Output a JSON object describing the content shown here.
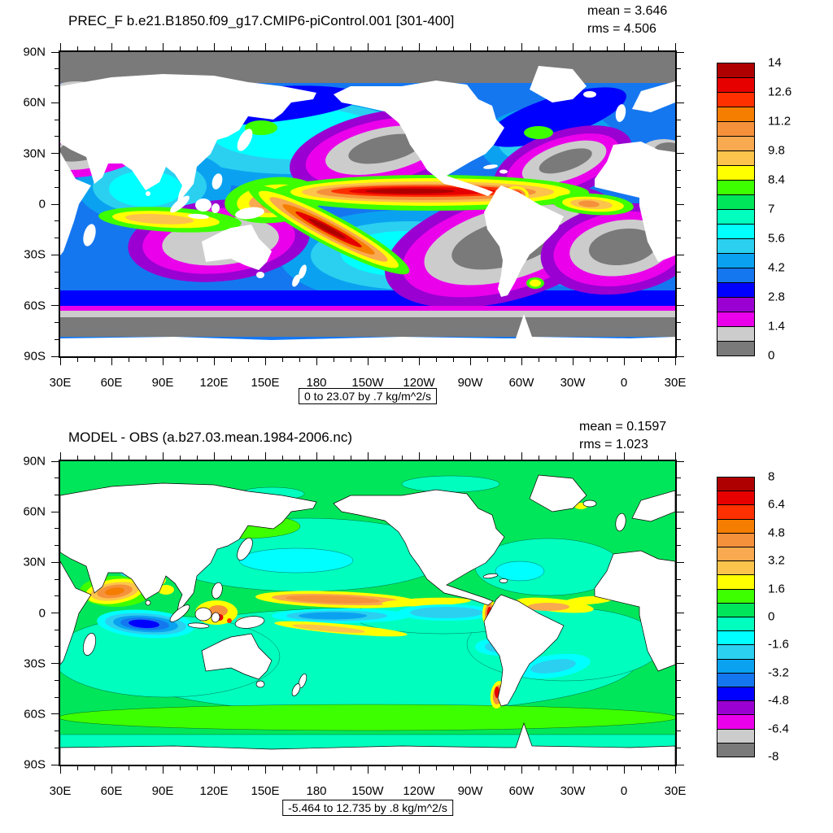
{
  "figure": {
    "background": "#FFFFFF",
    "kind": "AMWG climate diagnostic precipitation plot set"
  },
  "chart_data": [
    {
      "type": "filled-contour-map",
      "panel": "top",
      "title": "PREC_F b.e21.B1850.f09_g17.CMIP6-piControl.001 [301-400]",
      "stats": {
        "mean": 3.646,
        "rms": 4.506
      },
      "stats_lines": [
        "mean = 3.646",
        "rms = 4.506"
      ],
      "caption": "0 to 23.07 by .7 kg/m^2/s",
      "field_min": 0,
      "field_max": 23.07,
      "contour_interval": 0.7,
      "units": "kg/m^2/s",
      "projection": "global cylindrical equidistant, 30E to 30E, centered on 180",
      "x_tick_labels": [
        "30E",
        "60E",
        "90E",
        "120E",
        "150E",
        "180",
        "150W",
        "120W",
        "90W",
        "60W",
        "30W",
        "0",
        "30E"
      ],
      "y_tick_labels": [
        "90N",
        "60N",
        "30N",
        "0",
        "30S",
        "60S",
        "90S"
      ],
      "colorbar": {
        "tick_labels": [
          "14",
          "12.6",
          "11.2",
          "9.8",
          "8.4",
          "7",
          "5.6",
          "4.2",
          "2.8",
          "1.4",
          "0"
        ],
        "colors_top_to_bottom": [
          "#AE0000",
          "#E60000",
          "#FF3000",
          "#F57E00",
          "#F6913B",
          "#F9A94F",
          "#FCC44C",
          "#FFFF00",
          "#3DFF00",
          "#00E65A",
          "#00FFBE",
          "#00FFFF",
          "#2BD0F0",
          "#0AA2F0",
          "#1577F0",
          "#0000FF",
          "#9A00D2",
          "#EB00EB",
          "#CCCCCC",
          "#7A7A7A"
        ]
      }
    },
    {
      "type": "filled-contour-map",
      "panel": "bottom",
      "title": "MODEL - OBS (a.b27.03.mean.1984-2006.nc)",
      "stats": {
        "mean": 0.1597,
        "rms": 1.023
      },
      "stats_lines": [
        "mean = 0.1597",
        "rms = 1.023"
      ],
      "caption": "-5.464 to 12.735 by .8 kg/m^2/s",
      "field_min": -5.464,
      "field_max": 12.735,
      "contour_interval": 0.8,
      "units": "kg/m^2/s",
      "projection": "global cylindrical equidistant, 30E to 30E, centered on 180",
      "x_tick_labels": [
        "30E",
        "60E",
        "90E",
        "120E",
        "150E",
        "180",
        "150W",
        "120W",
        "90W",
        "60W",
        "30W",
        "0",
        "30E"
      ],
      "y_tick_labels": [
        "90N",
        "60N",
        "30N",
        "0",
        "30S",
        "60S",
        "90S"
      ],
      "colorbar": {
        "tick_labels": [
          "8",
          "6.4",
          "4.8",
          "3.2",
          "1.6",
          "0",
          "-1.6",
          "-3.2",
          "-4.8",
          "-6.4",
          "-8"
        ],
        "colors_top_to_bottom": [
          "#AE0000",
          "#E60000",
          "#FF3000",
          "#F57E00",
          "#F6913B",
          "#F9A94F",
          "#FCC44C",
          "#FFFF00",
          "#3DFF00",
          "#00E65A",
          "#00FFBE",
          "#00FFFF",
          "#2BD0F0",
          "#0AA2F0",
          "#1577F0",
          "#0000FF",
          "#9A00D2",
          "#EB00EB",
          "#CCCCCC",
          "#7A7A7A"
        ]
      }
    }
  ]
}
